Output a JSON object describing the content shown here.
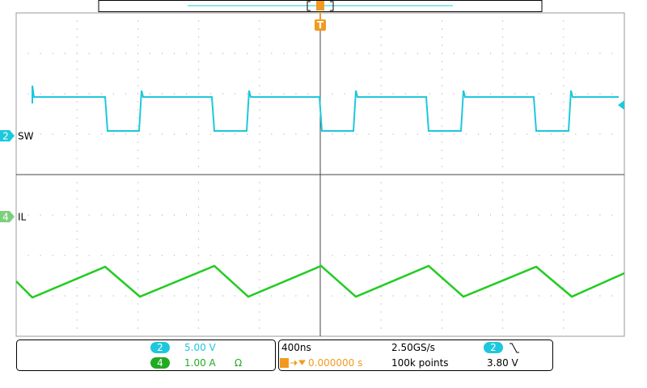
{
  "channels": {
    "ch2": {
      "number": "2",
      "label": "SW",
      "scale": "5.00 V"
    },
    "ch4": {
      "number": "4",
      "label": "IL",
      "scale": "1.00 A",
      "impedance": "Ω"
    }
  },
  "trigger": {
    "marker": "T",
    "position": "0.000000 s",
    "channel": "2",
    "level": "3.80 V"
  },
  "timebase": {
    "scale": "400ns",
    "sample_rate": "2.50GS/s",
    "record_length": "100k points"
  }
}
